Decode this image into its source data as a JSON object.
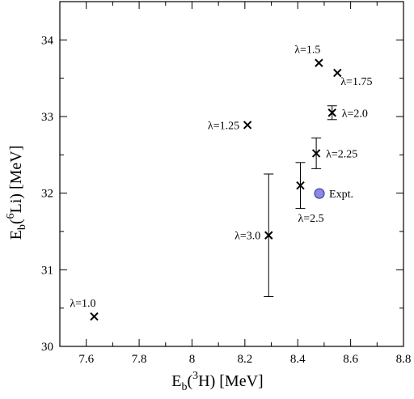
{
  "chart_data": {
    "type": "scatter",
    "x_axis": {
      "label_main": "E",
      "label_sub": "b",
      "label_paren_open": "(",
      "label_sup": "3",
      "label_species": "H) [MeV]",
      "range": [
        7.5,
        8.8
      ],
      "major_ticks": [
        7.6,
        7.8,
        8,
        8.2,
        8.4,
        8.6,
        8.8
      ],
      "tick_labels": [
        "7.6",
        "7.8",
        "8",
        "8.2",
        "8.4",
        "8.6",
        "8.8"
      ],
      "minor_step": 0.1
    },
    "y_axis": {
      "label_main": "E",
      "label_sub": "b",
      "label_paren_open": "(",
      "label_sup": "6",
      "label_species": "Li) [MeV]",
      "range": [
        30,
        34.5
      ],
      "major_ticks": [
        30,
        31,
        32,
        33,
        34
      ],
      "tick_labels": [
        "30",
        "31",
        "32",
        "33",
        "34"
      ],
      "minor_step": 0.5
    },
    "grid": false,
    "points": [
      {
        "label": "λ=1.0",
        "x": 7.63,
        "y": 30.39,
        "label_pos": "above-left"
      },
      {
        "label": "λ=1.25",
        "x": 8.21,
        "y": 32.89,
        "label_pos": "left"
      },
      {
        "label": "λ=1.5",
        "x": 8.48,
        "y": 33.7,
        "label_pos": "above-left"
      },
      {
        "label": "λ=1.75",
        "x": 8.55,
        "y": 33.57,
        "label_pos": "below-right"
      },
      {
        "label": "λ=2.0",
        "x": 8.53,
        "y": 33.05,
        "yerr": 0.09,
        "label_pos": "right"
      },
      {
        "label": "λ=2.25",
        "x": 8.47,
        "y": 32.52,
        "yerr": 0.2,
        "label_pos": "right"
      },
      {
        "label": "λ=2.5",
        "x": 8.41,
        "y": 32.1,
        "yerr": 0.3,
        "label_pos": "below"
      },
      {
        "label": "λ=3.0",
        "x": 8.29,
        "y": 31.45,
        "yerr": 0.8,
        "label_pos": "left"
      }
    ],
    "experiment": {
      "label": "Expt.",
      "x": 8.482,
      "y": 31.995,
      "color": "#8a8ae0",
      "edge_color": "#2a2a9a"
    }
  }
}
